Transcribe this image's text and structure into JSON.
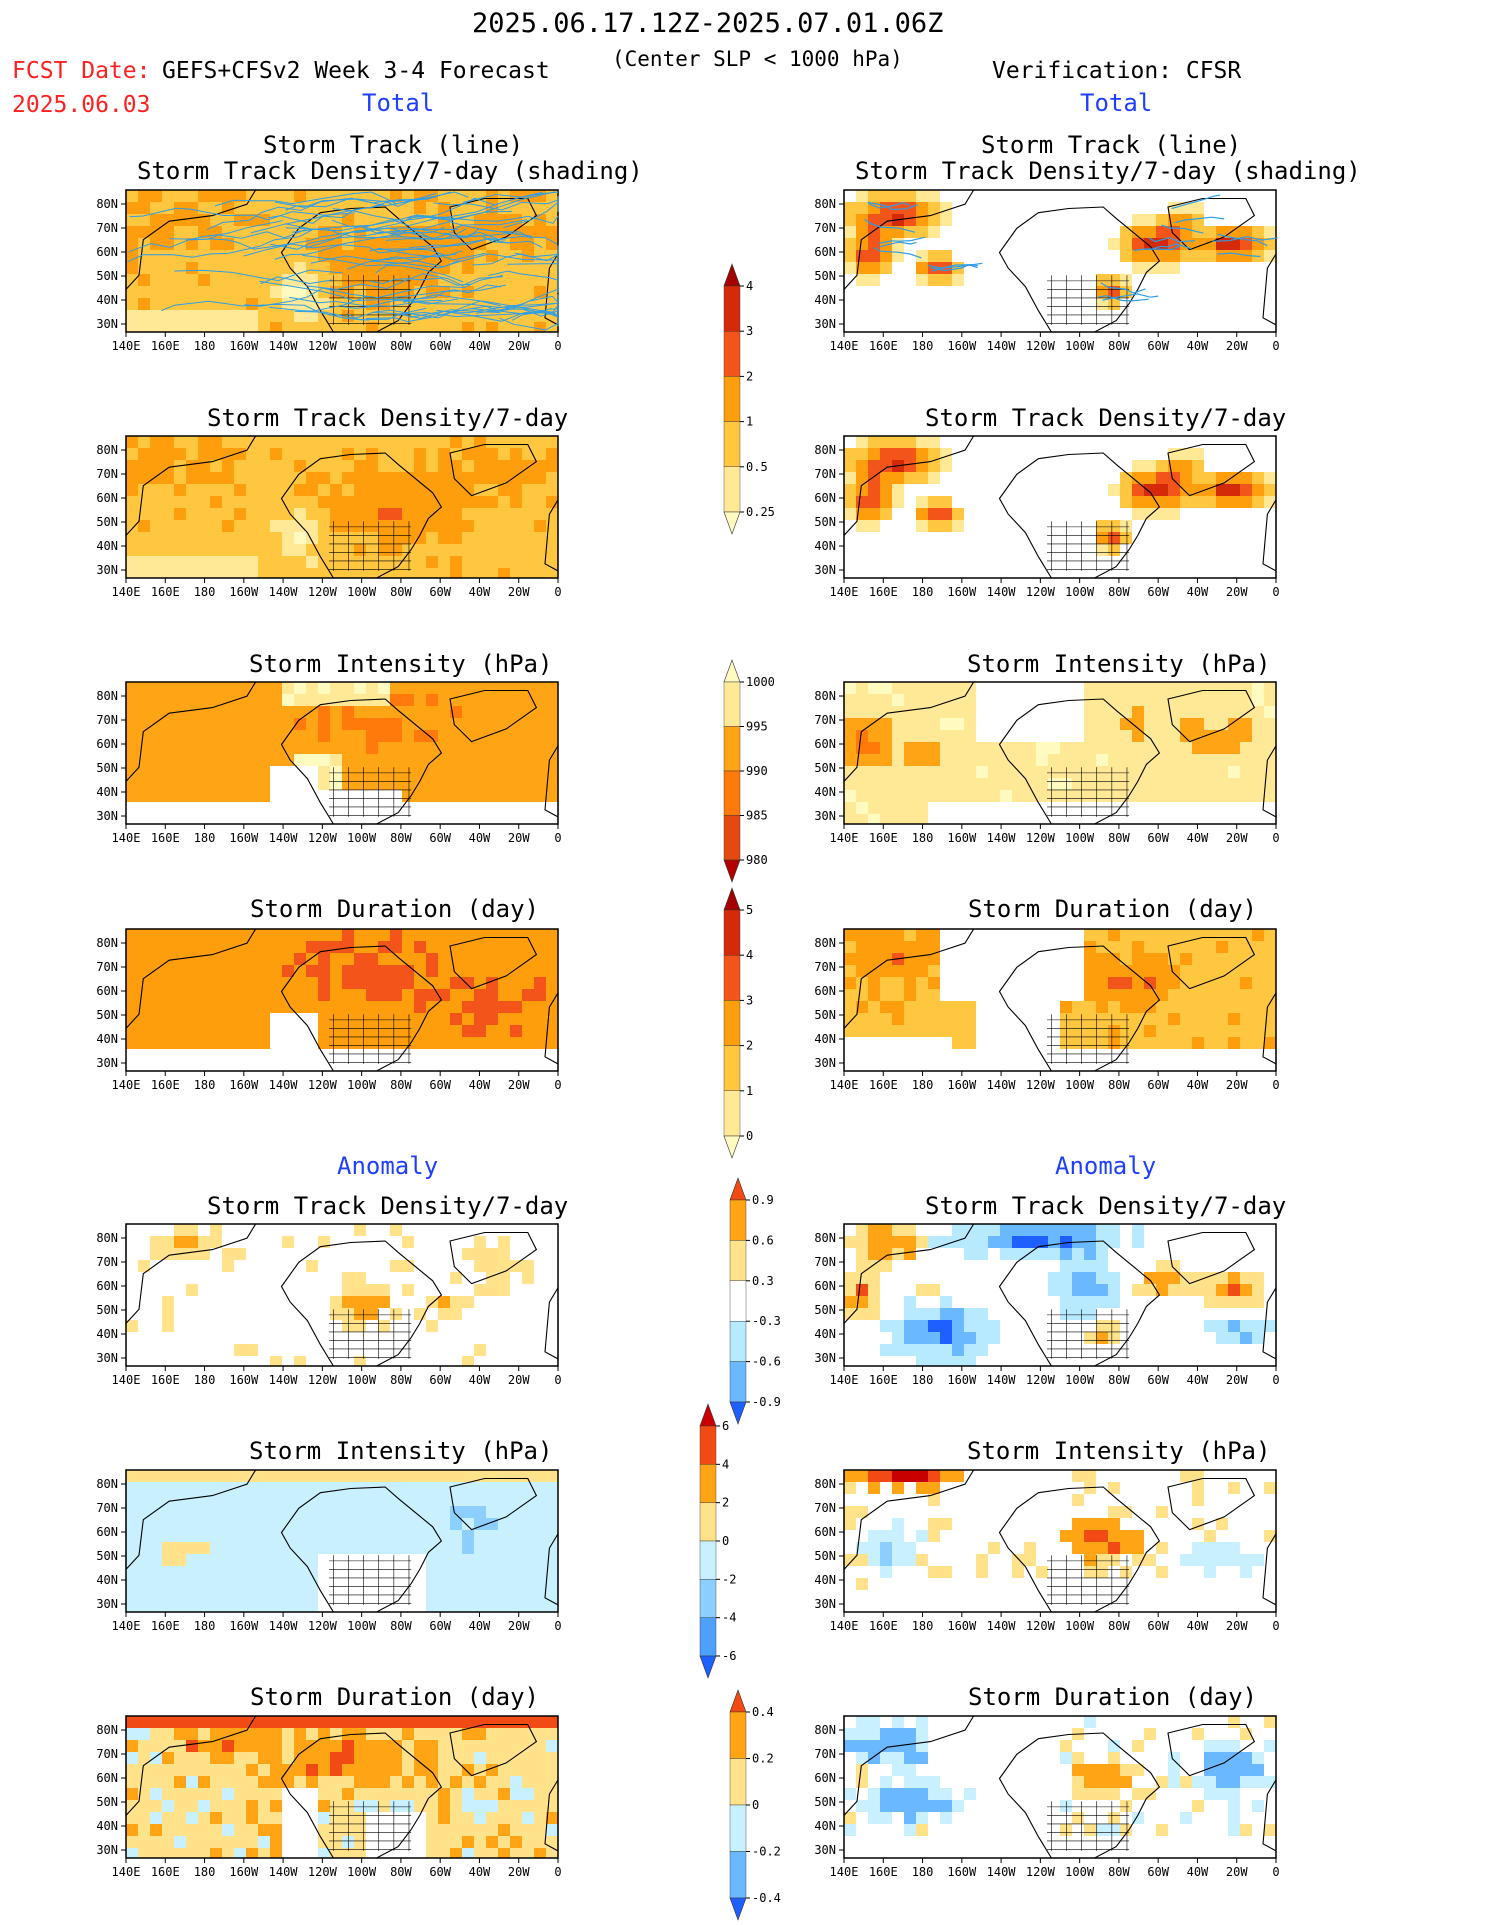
{
  "header": {
    "period": "2025.06.17.12Z-2025.07.01.06Z",
    "subtitle": "(Center SLP < 1000 hPa)",
    "fcst_date_label": "FCST Date:",
    "fcst_date": "2025.06.03",
    "forecast_label": "GEFS+CFSv2 Week 3-4 Forecast",
    "verification_label": "Verification: CFSR"
  },
  "sections": {
    "total": "Total",
    "anomaly": "Anomaly"
  },
  "panel_titles": {
    "track_line": "Storm Track (line)",
    "track_shading": "Storm Track Density/7-day (shading)",
    "density": "Storm Track Density/7-day",
    "intensity": "Storm Intensity (hPa)",
    "duration": "Storm Duration (day)"
  },
  "axes": {
    "lon_ticks": [
      "140E",
      "160E",
      "180",
      "160W",
      "140W",
      "120W",
      "100W",
      "80W",
      "60W",
      "40W",
      "20W",
      "0"
    ],
    "lat_ticks": [
      "80N",
      "70N",
      "60N",
      "50N",
      "40N",
      "30N"
    ]
  },
  "colorbars": {
    "density": {
      "labels": [
        "4",
        "3",
        "2",
        "1",
        "0.5",
        "0.25"
      ],
      "colors": [
        "#a40000",
        "#d52a0a",
        "#f2541a",
        "#ff9e0c",
        "#ffc740",
        "#ffe896",
        "#fffac0"
      ]
    },
    "intensity": {
      "labels": [
        "1000",
        "995",
        "990",
        "985",
        "980"
      ],
      "colors": [
        "#fffac0",
        "#ffe896",
        "#ffa415",
        "#ff7a0a",
        "#e44a10",
        "#b50000"
      ]
    },
    "duration": {
      "labels": [
        "5",
        "4",
        "3",
        "2",
        "1",
        "0"
      ],
      "colors": [
        "#a40000",
        "#d52a0a",
        "#f2541a",
        "#ff9e0c",
        "#ffc740",
        "#ffe896",
        "#fffac0"
      ]
    },
    "anom_density": {
      "labels": [
        "0.9",
        "0.6",
        "0.3",
        "-0.3",
        "-0.6",
        "-0.9"
      ],
      "colors": [
        "#f24a14",
        "#ffa415",
        "#ffe28a",
        "#ffffff",
        "#b8eaff",
        "#6ab8ff",
        "#1e5fff"
      ]
    },
    "anom_intensity": {
      "labels": [
        "6",
        "4",
        "2",
        "0",
        "-2",
        "-4",
        "-6"
      ],
      "colors": [
        "#c80000",
        "#f24a14",
        "#ffa415",
        "#ffe28a",
        "#c8f0ff",
        "#8ccfff",
        "#4ea0ff",
        "#1e5fff"
      ]
    },
    "anom_duration": {
      "labels": [
        "0.4",
        "0.2",
        "0",
        "-0.2",
        "-0.4"
      ],
      "colors": [
        "#f24a14",
        "#ffa415",
        "#ffe28a",
        "#c8f0ff",
        "#6ab8ff",
        "#1e5fff"
      ]
    }
  },
  "colors": {
    "track_line": "#2e9ee6",
    "forecast_date_red": "#ff2020",
    "section_blue": "#1f3fff",
    "coast": "#000000"
  }
}
